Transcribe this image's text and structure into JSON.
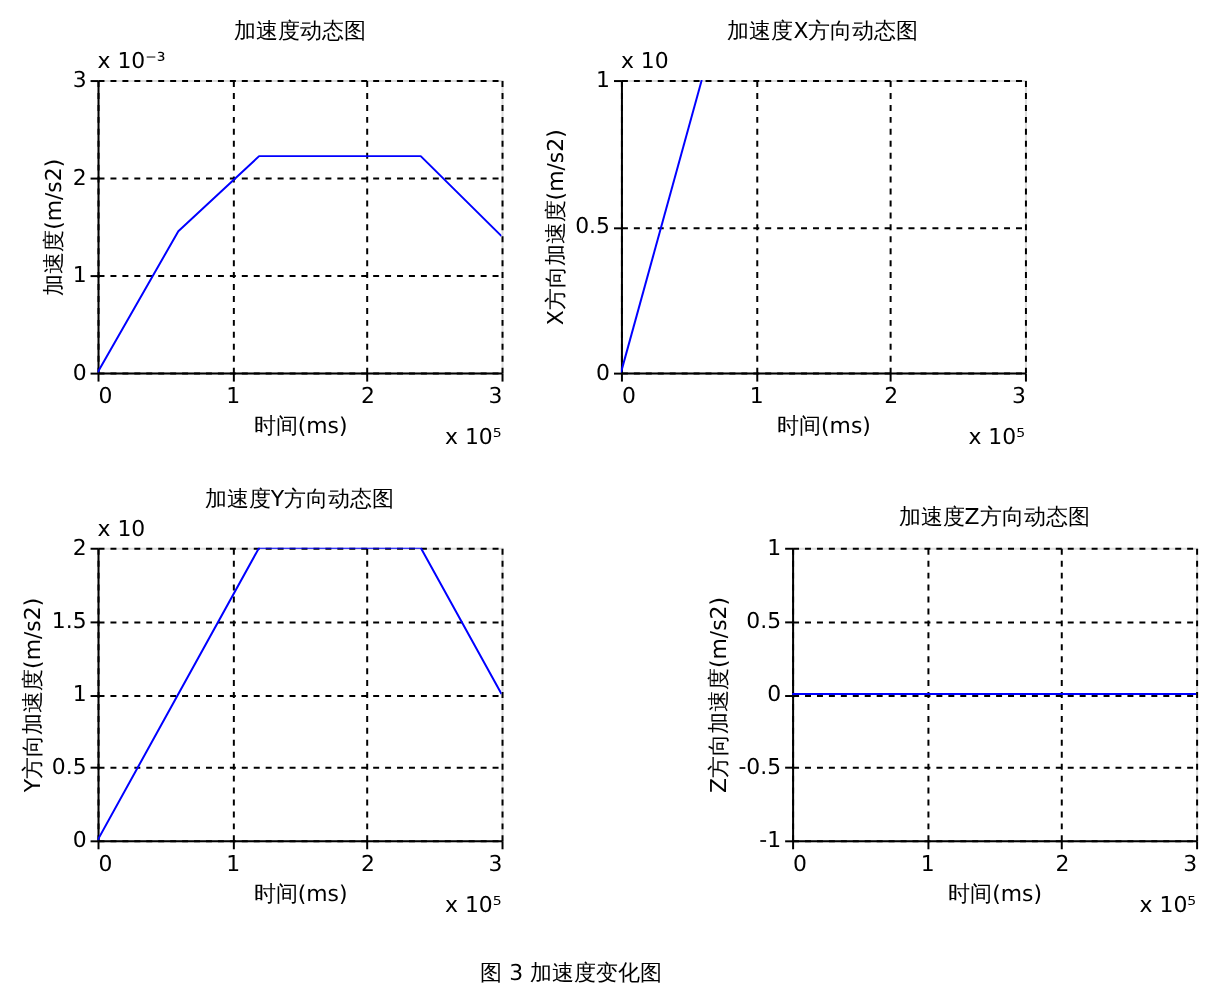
{
  "chart_data": [
    {
      "type": "line",
      "title": "加速度动态图",
      "xlabel": "时间(ms)",
      "ylabel": "加速度(m/s2)",
      "x": [
        0,
        0.6,
        1.2,
        2.4,
        3
      ],
      "series": [
        {
          "color": "#0000ff",
          "values": [
            0,
            1.45,
            2.22,
            2.22,
            1.4
          ]
        }
      ],
      "xlim": [
        0,
        3
      ],
      "xticks": [
        0,
        1,
        2,
        3
      ],
      "ylim": [
        0,
        3
      ],
      "yticks": [
        0,
        1,
        2,
        3
      ],
      "grid": true,
      "line_style": "solid",
      "annotations": [
        "x 10⁵",
        "x 10⁻³"
      ]
    },
    {
      "type": "line",
      "title": "加速度X方向动态图",
      "xlabel": "时间(ms)",
      "ylabel": "X方向加速度(m/s2)",
      "x": [
        0,
        0.6
      ],
      "series": [
        {
          "color": "#0000ff",
          "values": [
            0,
            1
          ]
        }
      ],
      "xlim": [
        0,
        3
      ],
      "xticks": [
        0,
        1,
        2,
        3
      ],
      "ylim": [
        0,
        1
      ],
      "yticks": [
        0,
        0.5,
        1
      ],
      "grid": true,
      "line_style": "solid",
      "annotations": [
        "x 10⁵",
        "x 10"
      ]
    },
    {
      "type": "line",
      "title": "加速度Y方向动态图",
      "xlabel": "时间(ms)",
      "ylabel": "Y方向加速度(m/s2)",
      "x": [
        0,
        1.2,
        2.4,
        3
      ],
      "series": [
        {
          "color": "#0000ff",
          "values": [
            0,
            2,
            2,
            1
          ]
        }
      ],
      "xlim": [
        0,
        3
      ],
      "xticks": [
        0,
        1,
        2,
        3
      ],
      "ylim": [
        0,
        2
      ],
      "yticks": [
        0,
        0.5,
        1,
        1.5,
        2
      ],
      "grid": true,
      "line_style": "solid",
      "annotations": [
        "x 10⁵",
        "x 10",
        "图 3  加速度变化图"
      ]
    },
    {
      "type": "line",
      "title": "加速度Z方向动态图",
      "xlabel": "时间(ms)",
      "ylabel": "Z方向加速度(m/s2)",
      "x": [
        0,
        3
      ],
      "series": [
        {
          "color": "#0000ff",
          "values": [
            0,
            0
          ]
        }
      ],
      "xlim": [
        0,
        3
      ],
      "xticks": [
        0,
        1,
        2,
        3
      ],
      "ylim": [
        -1,
        1
      ],
      "yticks": [
        -1,
        -0.5,
        0,
        0.5,
        1
      ],
      "grid": true,
      "line_style": "solid",
      "annotations": [
        "x 10⁵"
      ]
    }
  ]
}
